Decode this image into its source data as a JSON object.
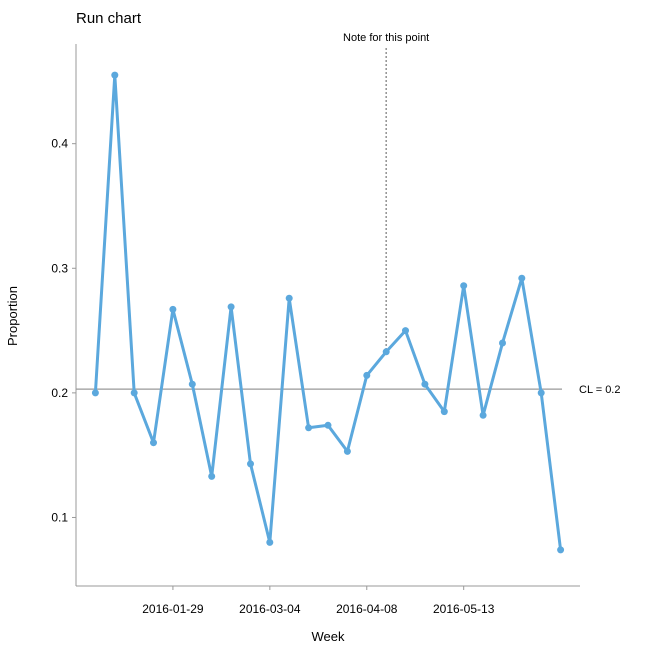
{
  "chart_data": {
    "type": "line",
    "title": "Run chart",
    "xlabel": "Week",
    "ylabel": "Proportion",
    "x": [
      "2016-01-01",
      "2016-01-08",
      "2016-01-15",
      "2016-01-22",
      "2016-01-29",
      "2016-02-05",
      "2016-02-12",
      "2016-02-19",
      "2016-02-26",
      "2016-03-04",
      "2016-03-11",
      "2016-03-18",
      "2016-03-25",
      "2016-04-01",
      "2016-04-08",
      "2016-04-15",
      "2016-04-22",
      "2016-04-29",
      "2016-05-06",
      "2016-05-13",
      "2016-05-20",
      "2016-05-27",
      "2016-06-03",
      "2016-06-10",
      "2016-06-17"
    ],
    "series": [
      {
        "values": [
          0.2,
          0.455,
          0.2,
          0.16,
          0.267,
          0.207,
          0.133,
          0.269,
          0.143,
          0.08,
          0.276,
          0.172,
          0.174,
          0.153,
          0.214,
          0.233,
          0.25,
          0.207,
          0.185,
          0.286,
          0.182,
          0.24,
          0.292,
          0.2,
          0.074
        ]
      }
    ],
    "x_ticks": [
      "2016-01-29",
      "2016-03-04",
      "2016-04-08",
      "2016-05-13"
    ],
    "y_ticks": [
      0.1,
      0.2,
      0.3,
      0.4
    ],
    "ylim": [
      0.045,
      0.48
    ],
    "xlim": [
      "2015-12-25",
      "2016-06-24"
    ],
    "center_line": {
      "value": 0.203,
      "label": "CL = 0.2"
    },
    "annotations": [
      {
        "x": "2016-04-15",
        "label": "Note for this point"
      }
    ],
    "grid": false,
    "colors": {
      "line": "#5ba8dd",
      "center_line": "#999999",
      "axis": "#999999",
      "annotation": "#777777"
    }
  }
}
